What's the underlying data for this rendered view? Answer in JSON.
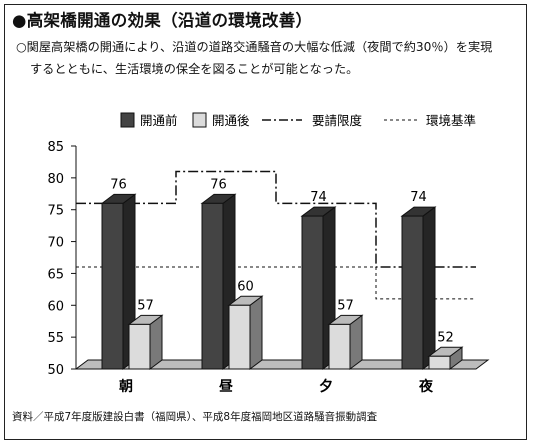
{
  "title": "●高架橋開通の効果（沿道の環境改善）",
  "description": "○関屋高架橋の開通により、沿道の道路交通騒音の大幅な低減（夜間で約30％）を実現するとともに、生活環境の保全を図ることが可能となった。",
  "source": "資料／平成7年度版建設白書（福岡県）、平成8年度福岡地区道路騒音振動調査",
  "colors": {
    "before_front": "#444444",
    "after_front": "#dcdcdc"
  },
  "chart_data": {
    "type": "bar",
    "categories": [
      "朝",
      "昼",
      "夕",
      "夜"
    ],
    "series": [
      {
        "name": "開通前",
        "values": [
          76,
          76,
          74,
          74
        ]
      },
      {
        "name": "開通後",
        "values": [
          57,
          60,
          57,
          52
        ]
      }
    ],
    "reference_lines": [
      {
        "name": "要請限度",
        "style": "dash-dot",
        "values": [
          76,
          81,
          76,
          66
        ]
      },
      {
        "name": "環境基準",
        "style": "dashed",
        "values": [
          66,
          66,
          66,
          61
        ]
      }
    ],
    "ylim": [
      50,
      85
    ],
    "yticks": [
      50,
      55,
      60,
      65,
      70,
      75,
      80,
      85
    ],
    "legend_position": "top",
    "grid": false
  }
}
